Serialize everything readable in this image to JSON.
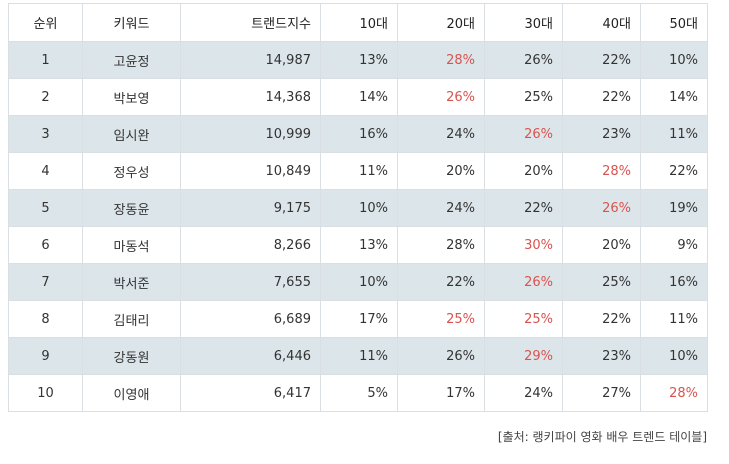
{
  "table": {
    "headers": [
      "순위",
      "키워드",
      "트랜드지수",
      "10대",
      "20대",
      "30대",
      "40대",
      "50대"
    ],
    "rows": [
      {
        "rank": "1",
        "keyword": "고윤정",
        "index": "14,987",
        "a10": "13%",
        "a20": "28%",
        "a30": "26%",
        "a40": "22%",
        "a50": "10%",
        "highlight": "a20"
      },
      {
        "rank": "2",
        "keyword": "박보영",
        "index": "14,368",
        "a10": "14%",
        "a20": "26%",
        "a30": "25%",
        "a40": "22%",
        "a50": "14%",
        "highlight": "a20"
      },
      {
        "rank": "3",
        "keyword": "임시완",
        "index": "10,999",
        "a10": "16%",
        "a20": "24%",
        "a30": "26%",
        "a40": "23%",
        "a50": "11%",
        "highlight": "a30"
      },
      {
        "rank": "4",
        "keyword": "정우성",
        "index": "10,849",
        "a10": "11%",
        "a20": "20%",
        "a30": "20%",
        "a40": "28%",
        "a50": "22%",
        "highlight": "a40"
      },
      {
        "rank": "5",
        "keyword": "장동윤",
        "index": "9,175",
        "a10": "10%",
        "a20": "24%",
        "a30": "22%",
        "a40": "26%",
        "a50": "19%",
        "highlight": "a40"
      },
      {
        "rank": "6",
        "keyword": "마동석",
        "index": "8,266",
        "a10": "13%",
        "a20": "28%",
        "a30": "30%",
        "a40": "20%",
        "a50": "9%",
        "highlight": "a30"
      },
      {
        "rank": "7",
        "keyword": "박서준",
        "index": "7,655",
        "a10": "10%",
        "a20": "22%",
        "a30": "26%",
        "a40": "25%",
        "a50": "16%",
        "highlight": "a30"
      },
      {
        "rank": "8",
        "keyword": "김태리",
        "index": "6,689",
        "a10": "17%",
        "a20": "25%",
        "a30": "25%",
        "a40": "22%",
        "a50": "11%",
        "highlight": "a20,a30"
      },
      {
        "rank": "9",
        "keyword": "강동원",
        "index": "6,446",
        "a10": "11%",
        "a20": "26%",
        "a30": "29%",
        "a40": "23%",
        "a50": "10%",
        "highlight": "a30"
      },
      {
        "rank": "10",
        "keyword": "이영애",
        "index": "6,417",
        "a10": "5%",
        "a20": "17%",
        "a30": "24%",
        "a40": "27%",
        "a50": "28%",
        "highlight": "a50"
      }
    ]
  },
  "source": "[출처: 랭키파이 영화 배우 트렌드 테이블]",
  "colors": {
    "highlight_text": "#d9534f",
    "stripe_background": "#dce6ea",
    "border": "#d9dfe3"
  }
}
